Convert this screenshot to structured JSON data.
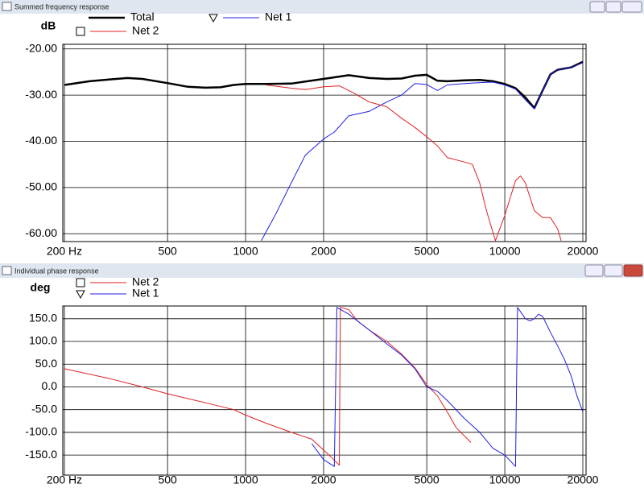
{
  "windows": [
    {
      "title": "Summed frequency response"
    },
    {
      "title": "Individual phase response"
    }
  ],
  "chart_data": [
    {
      "type": "line",
      "y_label": "dB",
      "xscale": "log",
      "grid": true,
      "xlim": [
        200,
        20000
      ],
      "ylim": [
        -61.7,
        -19
      ],
      "xticks": [
        {
          "value": 200,
          "label": "200 Hz"
        },
        500,
        1000,
        2000,
        5000,
        10000,
        20000
      ],
      "yticks": [
        {
          "value": -20,
          "label": "-20.00"
        },
        {
          "value": -30,
          "label": "-30.00"
        },
        {
          "value": -40,
          "label": "-40.00"
        },
        {
          "value": -50,
          "label": "-50.00"
        },
        {
          "value": -60,
          "label": "-60.00"
        }
      ],
      "series": [
        {
          "name": "Total",
          "color": "#000000",
          "width": 2.5,
          "x": [
            200,
            250,
            300,
            350,
            400,
            500,
            600,
            700,
            800,
            900,
            1000,
            1200,
            1500,
            2000,
            2500,
            3000,
            3500,
            4000,
            4500,
            5000,
            5500,
            6000,
            7000,
            8000,
            9000,
            10000,
            11000,
            12000,
            13000,
            14000,
            15000,
            16000,
            18000,
            20000
          ],
          "values": [
            -27.8,
            -27,
            -26.6,
            -26.3,
            -26.5,
            -27.4,
            -28.2,
            -28.4,
            -28.3,
            -27.8,
            -27.6,
            -27.6,
            -27.5,
            -26.5,
            -25.7,
            -26.3,
            -26.5,
            -26.4,
            -25.8,
            -25.6,
            -26.9,
            -27,
            -26.8,
            -26.7,
            -27,
            -27.6,
            -28.5,
            -30.5,
            -32.8,
            -29,
            -25.5,
            -24.5,
            -24,
            -22.8
          ]
        },
        {
          "name": "Net 1",
          "color": "#2020e0",
          "width": 1,
          "marker": "triangle",
          "x": [
            1150,
            1300,
            1500,
            1700,
            2000,
            2200,
            2500,
            3000,
            3500,
            4000,
            4500,
            5000,
            5500,
            6000,
            7000,
            8000,
            9000,
            10000,
            11000,
            12000,
            13000,
            14000,
            15000,
            16000,
            18000,
            20000
          ],
          "values": [
            -61.5,
            -56,
            -49,
            -43,
            -39.5,
            -38,
            -34.5,
            -33.5,
            -31.5,
            -30,
            -27.5,
            -27.7,
            -29,
            -27.8,
            -27.5,
            -27.3,
            -27.2,
            -27.8,
            -28.7,
            -31,
            -33,
            -29,
            -25.5,
            -24.5,
            -24,
            -23
          ]
        },
        {
          "name": "Net 2",
          "color": "#e02020",
          "width": 1,
          "marker": "square",
          "x": [
            1200,
            1500,
            1700,
            2000,
            2300,
            2600,
            3000,
            3500,
            4000,
            4500,
            5000,
            5500,
            6000,
            7000,
            7500,
            8000,
            8500,
            9200,
            10000,
            11000,
            11500,
            12000,
            13000,
            14000,
            15000,
            16000,
            16500
          ],
          "values": [
            -27.8,
            -28.5,
            -28.8,
            -28.2,
            -28,
            -29.5,
            -31.5,
            -32.5,
            -35,
            -37,
            -39,
            -41,
            -43.5,
            -44.5,
            -45,
            -49,
            -55,
            -61.5,
            -56,
            -48.5,
            -47.5,
            -49,
            -55,
            -56.5,
            -56.5,
            -59,
            -61.5
          ]
        }
      ]
    },
    {
      "type": "line",
      "y_label": "deg",
      "xscale": "log",
      "grid": true,
      "xlim": [
        200,
        20000
      ],
      "ylim": [
        -194,
        178
      ],
      "xticks": [
        {
          "value": 200,
          "label": "200 Hz"
        },
        500,
        1000,
        2000,
        5000,
        10000,
        20000
      ],
      "yticks": [
        {
          "value": 150,
          "label": "150.0"
        },
        {
          "value": 100,
          "label": "100.0"
        },
        {
          "value": 50,
          "label": "50.0"
        },
        {
          "value": 0,
          "label": "0.0"
        },
        {
          "value": -50,
          "label": "-50.0"
        },
        {
          "value": -100,
          "label": "-100.0"
        },
        {
          "value": -150,
          "label": "-150.0"
        }
      ],
      "series": [
        {
          "name": "Net 2",
          "color": "#e02020",
          "width": 1,
          "marker": "square",
          "x": [
            200,
            300,
            400,
            500,
            700,
            900,
            1000,
            1200,
            1500,
            1800,
            2100,
            2300,
            2320,
            2500,
            2700,
            3000,
            3500,
            4000,
            4500,
            5000,
            5500,
            6000,
            6500,
            7400
          ],
          "values": [
            40,
            18,
            0,
            -15,
            -35,
            -50,
            -62,
            -80,
            -100,
            -115,
            -150,
            -172,
            175,
            170,
            145,
            125,
            100,
            72,
            42,
            5,
            -20,
            -55,
            -90,
            -122
          ]
        },
        {
          "name": "Net 1",
          "color": "#2020e0",
          "width": 1,
          "marker": "triangle",
          "x": [
            1800,
            2000,
            2200,
            2250,
            2500,
            3000,
            3500,
            4000,
            4500,
            5000,
            5500,
            6000,
            7000,
            8000,
            9000,
            10000,
            11000,
            11200,
            12000,
            12500,
            13000,
            13500,
            14000,
            15000,
            16000,
            17000,
            18000,
            19000,
            20000
          ],
          "values": [
            -125,
            -160,
            -175,
            175,
            160,
            125,
            95,
            70,
            40,
            0,
            -10,
            -30,
            -70,
            -100,
            -135,
            -150,
            -175,
            175,
            150,
            145,
            150,
            160,
            155,
            120,
            90,
            60,
            25,
            -20,
            -55
          ]
        }
      ]
    }
  ]
}
